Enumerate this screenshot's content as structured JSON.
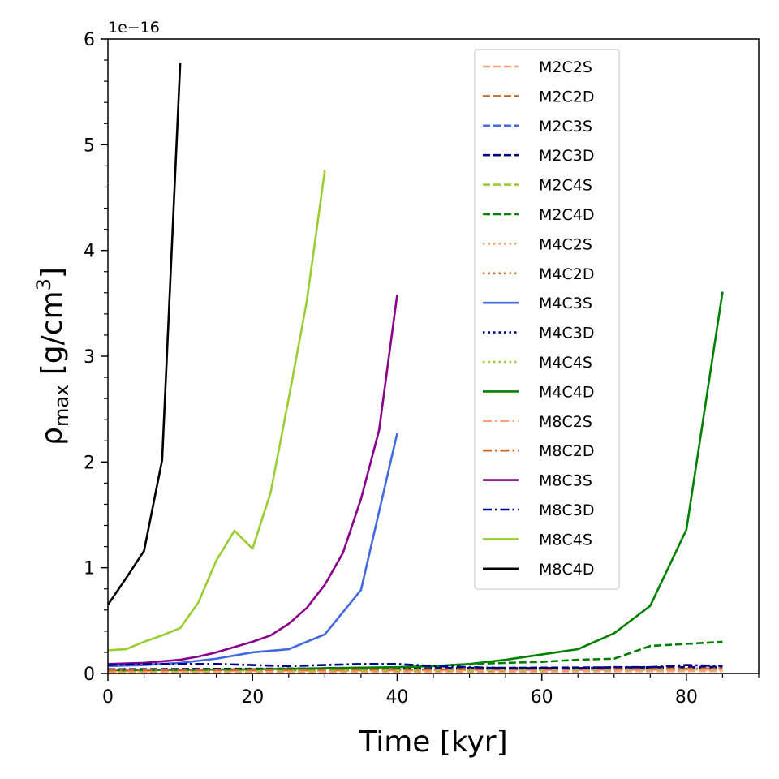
{
  "chart_data": {
    "type": "line",
    "xlabel": "Time [kyr]",
    "ylabel_main": "ρ",
    "ylabel_sub": "max",
    "ylabel_unit_pre": " [g/cm",
    "ylabel_unit_sup": "3",
    "ylabel_unit_post": "]",
    "y_offset_text": "1e−16",
    "xlim": [
      0,
      90
    ],
    "ylim": [
      0,
      6
    ],
    "x_ticks": [
      0,
      20,
      40,
      60,
      80
    ],
    "x_minor_step": 5,
    "y_ticks": [
      0,
      1,
      2,
      3,
      4,
      5,
      6
    ],
    "y_minor_step": 0.2,
    "grid": false,
    "legend_position": "top-center",
    "series": [
      {
        "name": "M2C2S",
        "color": "#FFA07A",
        "dash": "dashed",
        "x": [
          0,
          10,
          20,
          30,
          40,
          50,
          60,
          70,
          80,
          85
        ],
        "y": [
          0.01,
          0.012,
          0.014,
          0.015,
          0.016,
          0.017,
          0.018,
          0.02,
          0.022,
          0.023
        ]
      },
      {
        "name": "M2C2D",
        "color": "#D2691E",
        "dash": "dashed",
        "x": [
          0,
          10,
          20,
          30,
          40,
          50,
          60,
          70,
          80,
          85
        ],
        "y": [
          0.02,
          0.022,
          0.024,
          0.025,
          0.026,
          0.028,
          0.03,
          0.035,
          0.04,
          0.045
        ]
      },
      {
        "name": "M2C3S",
        "color": "#4169E1",
        "dash": "dashed",
        "x": [
          0,
          10,
          20,
          30,
          40,
          50,
          60,
          70,
          80,
          85
        ],
        "y": [
          0.03,
          0.032,
          0.034,
          0.036,
          0.038,
          0.04,
          0.042,
          0.044,
          0.046,
          0.048
        ]
      },
      {
        "name": "M2C3D",
        "color": "#00008B",
        "dash": "dashed",
        "x": [
          0,
          10,
          20,
          30,
          40,
          50,
          60,
          70,
          80,
          85
        ],
        "y": [
          0.04,
          0.042,
          0.045,
          0.048,
          0.05,
          0.052,
          0.055,
          0.058,
          0.06,
          0.062
        ]
      },
      {
        "name": "M2C4S",
        "color": "#9ACD32",
        "dash": "dashed",
        "x": [
          0,
          10,
          20,
          30,
          40,
          50,
          60,
          70,
          80,
          85
        ],
        "y": [
          0.02,
          0.022,
          0.025,
          0.028,
          0.03,
          0.032,
          0.034,
          0.036,
          0.038,
          0.04
        ]
      },
      {
        "name": "M2C4D",
        "color": "#008000",
        "dash": "dashed",
        "x": [
          0,
          10,
          20,
          30,
          40,
          45,
          50,
          55,
          60,
          65,
          70,
          75,
          80,
          85
        ],
        "y": [
          0.03,
          0.035,
          0.04,
          0.045,
          0.05,
          0.07,
          0.09,
          0.1,
          0.11,
          0.13,
          0.14,
          0.26,
          0.28,
          0.3
        ]
      },
      {
        "name": "M4C2S",
        "color": "#FFA07A",
        "dash": "dotted",
        "x": [
          0,
          10,
          20,
          30,
          40,
          50,
          60,
          70,
          80,
          85
        ],
        "y": [
          0.015,
          0.017,
          0.019,
          0.02,
          0.022,
          0.024,
          0.026,
          0.028,
          0.03,
          0.032
        ]
      },
      {
        "name": "M4C2D",
        "color": "#D2691E",
        "dash": "dotted",
        "x": [
          0,
          10,
          20,
          30,
          40,
          50,
          60,
          70,
          80,
          85
        ],
        "y": [
          0.025,
          0.027,
          0.029,
          0.03,
          0.032,
          0.034,
          0.036,
          0.038,
          0.04,
          0.042
        ]
      },
      {
        "name": "M4C3S",
        "color": "#4169E1",
        "dash": "solid",
        "x": [
          0,
          5,
          10,
          15,
          20,
          25,
          30,
          35,
          40
        ],
        "y": [
          0.07,
          0.08,
          0.1,
          0.14,
          0.2,
          0.23,
          0.37,
          0.79,
          2.27
        ]
      },
      {
        "name": "M4C3D",
        "color": "#00008B",
        "dash": "dotted",
        "x": [
          0,
          10,
          20,
          30,
          40,
          50,
          60,
          70,
          80,
          85
        ],
        "y": [
          0.035,
          0.037,
          0.04,
          0.042,
          0.045,
          0.047,
          0.05,
          0.052,
          0.055,
          0.057
        ]
      },
      {
        "name": "M4C4S",
        "color": "#9ACD32",
        "dash": "dotted",
        "x": [
          0,
          10,
          20,
          30,
          40,
          50,
          60,
          70,
          80,
          85
        ],
        "y": [
          0.02,
          0.022,
          0.024,
          0.026,
          0.028,
          0.03,
          0.032,
          0.034,
          0.036,
          0.038
        ]
      },
      {
        "name": "M4C4D",
        "color": "#008000",
        "dash": "solid",
        "x": [
          0,
          10,
          20,
          30,
          40,
          45,
          50,
          55,
          60,
          65,
          70,
          75,
          80,
          85
        ],
        "y": [
          0.03,
          0.035,
          0.04,
          0.05,
          0.06,
          0.07,
          0.09,
          0.13,
          0.18,
          0.23,
          0.38,
          0.64,
          1.36,
          3.61
        ]
      },
      {
        "name": "M8C2S",
        "color": "#FFA07A",
        "dash": "dashdot",
        "x": [
          0,
          10,
          20,
          30,
          40,
          50,
          60,
          70,
          80,
          85
        ],
        "y": [
          0.02,
          0.022,
          0.024,
          0.026,
          0.028,
          0.03,
          0.032,
          0.034,
          0.036,
          0.038
        ]
      },
      {
        "name": "M8C2D",
        "color": "#D2691E",
        "dash": "dashdot",
        "x": [
          0,
          10,
          20,
          30,
          40,
          50,
          60,
          70,
          80,
          85
        ],
        "y": [
          0.03,
          0.032,
          0.034,
          0.036,
          0.038,
          0.04,
          0.042,
          0.044,
          0.046,
          0.048
        ]
      },
      {
        "name": "M8C3S",
        "color": "#8B008B",
        "dash": "solid",
        "x": [
          0,
          5,
          10,
          12.5,
          15,
          17.5,
          20,
          22.5,
          25,
          27.5,
          30,
          32.5,
          35,
          37.5,
          40
        ],
        "y": [
          0.09,
          0.1,
          0.13,
          0.16,
          0.2,
          0.25,
          0.3,
          0.36,
          0.47,
          0.62,
          0.84,
          1.14,
          1.65,
          2.3,
          3.58
        ]
      },
      {
        "name": "M8C3D",
        "color": "#00008B",
        "dash": "dashdot",
        "x": [
          0,
          5,
          10,
          15,
          20,
          25,
          30,
          35,
          40,
          45,
          50,
          55,
          60,
          65,
          70,
          75,
          80,
          85
        ],
        "y": [
          0.08,
          0.09,
          0.09,
          0.09,
          0.08,
          0.07,
          0.08,
          0.09,
          0.09,
          0.07,
          0.06,
          0.05,
          0.05,
          0.05,
          0.06,
          0.06,
          0.08,
          0.07
        ]
      },
      {
        "name": "M8C4S",
        "color": "#9ACD32",
        "dash": "solid",
        "x": [
          0,
          2.5,
          5,
          7.5,
          10,
          12.5,
          15,
          17.5,
          20,
          22.5,
          25,
          27.5,
          30
        ],
        "y": [
          0.22,
          0.23,
          0.3,
          0.36,
          0.43,
          0.67,
          1.07,
          1.35,
          1.18,
          1.71,
          2.6,
          3.52,
          4.76
        ]
      },
      {
        "name": "M8C4D",
        "color": "#000000",
        "dash": "solid",
        "x": [
          0,
          2.5,
          5,
          7.5,
          10
        ],
        "y": [
          0.65,
          0.9,
          1.16,
          2.02,
          5.77
        ]
      }
    ]
  }
}
